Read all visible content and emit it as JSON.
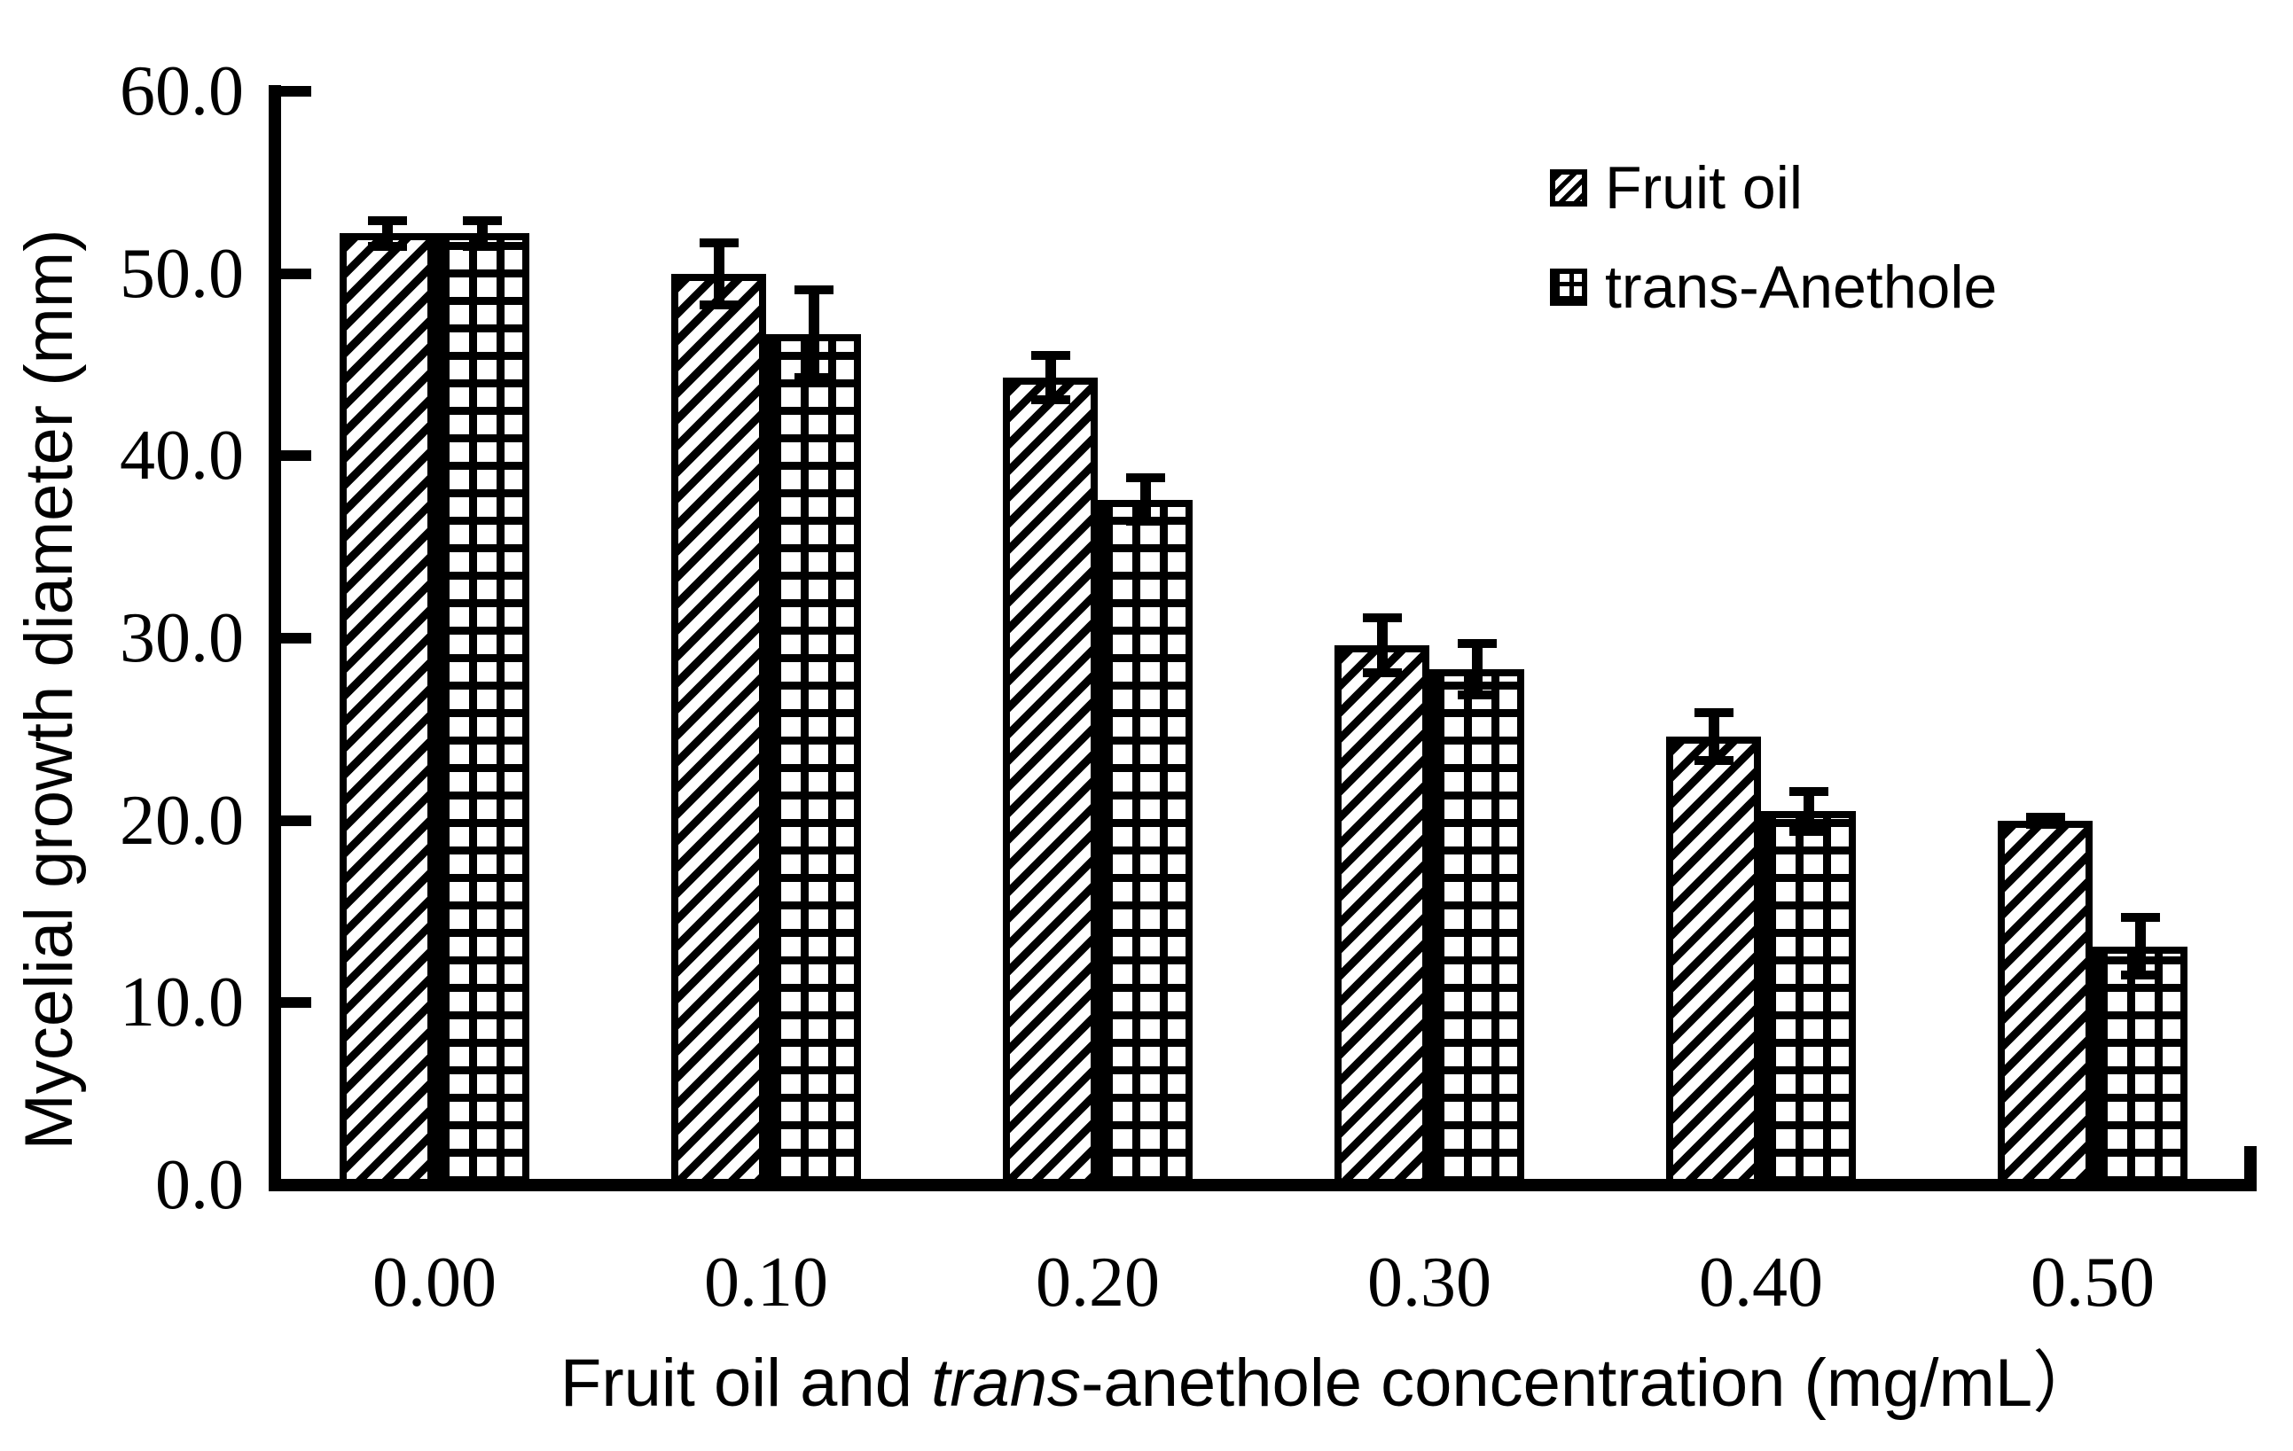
{
  "chart_data": {
    "type": "bar",
    "title": "",
    "categories": [
      "0.00",
      "0.10",
      "0.20",
      "0.30",
      "0.40",
      "0.50"
    ],
    "series": [
      {
        "name": "Fruit oil",
        "pattern": "diagonal-hatch",
        "values": [
          52.2,
          50.0,
          44.3,
          29.6,
          24.6,
          20.0
        ],
        "errors": [
          0.7,
          1.7,
          1.2,
          1.5,
          1.3,
          0.2
        ]
      },
      {
        "name": "trans-Anethole",
        "pattern": "grid-hatch",
        "values": [
          52.2,
          46.7,
          37.6,
          28.3,
          20.5,
          13.1
        ],
        "errors": [
          0.7,
          2.4,
          1.2,
          1.4,
          1.1,
          1.6
        ]
      }
    ],
    "xlabel_parts": {
      "prefix": "Fruit oil and ",
      "italic": "trans",
      "suffix": "-anethole concentration (mg/mL）"
    },
    "ylabel": "Mycelial growth diameter (mm)",
    "ylim": [
      0,
      60
    ],
    "ytick_step": 10,
    "ytick_labels": [
      "0.0",
      "10.0",
      "20.0",
      "30.0",
      "40.0",
      "50.0",
      "60.0"
    ],
    "legend_position": "top-right",
    "grid": false,
    "error_bars": true,
    "colors": {
      "foreground": "#000000",
      "background": "#ffffff"
    }
  }
}
